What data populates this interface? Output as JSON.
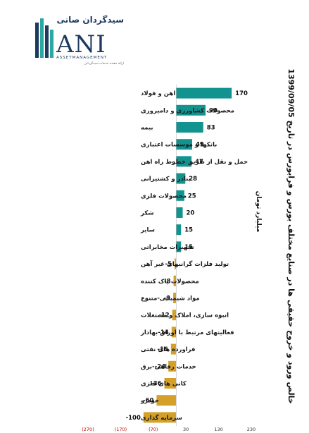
{
  "brand": {
    "name_fa": "سیدگردان صانی",
    "name_latin": "ANI",
    "subtitle": "ASSETMANAGEMENT",
    "tagline": "ارائه دهنده خدمات سبدگردانی"
  },
  "chart_data": {
    "type": "bar",
    "orientation": "horizontal",
    "title": "خالص ورود و خروج حقیقی ها در صنایع مختلف بورس و فرابورس در تاریخ 1399/09/05",
    "unit_label": "میلیارد تومان",
    "categories": [
      "اهن و فولاد",
      "محصولات کشاورزی و دامپروری",
      "بیمه",
      "بانکها و موسسات اعتباری",
      "حمل و نقل از طریق خطوط راه اهن",
      "بنادر و کشتیرانی",
      "محصولات فلزی",
      "شکر",
      "سایر",
      "تجهیزات مخابراتی",
      "تولید فلزات گرانبهای غیر آهن",
      "محصولات پاک کننده",
      "مواد شیمیایی-متنوع",
      "انبوه سازی، املاک و مستغلات",
      "فعالیتهای مرتبط با اوراق بهادار",
      "فراورده های نفتی",
      "خدمات رفاهی-برق",
      "کانی های فلزی",
      "خودرو",
      "سرمایه گذاری"
    ],
    "values": [
      170,
      90,
      83,
      49,
      47,
      28,
      25,
      20,
      15,
      15,
      -5,
      -8,
      -9,
      -12,
      -14,
      -16,
      -24,
      -36,
      -60,
      -100
    ],
    "value_labels": [
      "170",
      "90",
      "83",
      "49",
      "47",
      "28",
      "25",
      "20",
      "15",
      "15",
      "-5",
      "-8",
      "-9",
      "-12",
      "-14",
      "-16",
      "-24",
      "-36",
      "-60",
      "-100"
    ],
    "xlim": [
      -270,
      230
    ],
    "x_ticks": [
      -270,
      -170,
      -70,
      30,
      130,
      230
    ],
    "x_tick_labels": [
      "(270)",
      "(170)",
      "(70)",
      "30",
      "130",
      "230"
    ],
    "colors": {
      "positive": "#13938f",
      "negative": "#d4a02a",
      "negative_tick": "#c00000"
    },
    "grid": false,
    "legend": "none"
  }
}
